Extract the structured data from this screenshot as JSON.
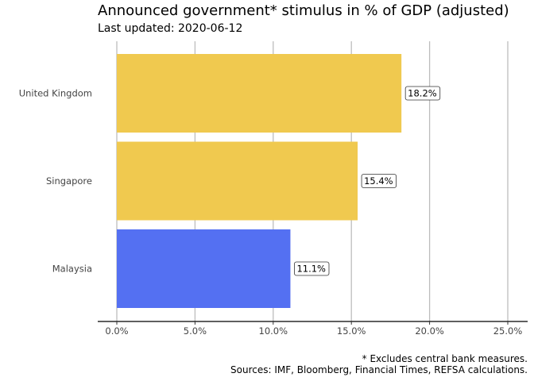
{
  "title": "Announced government* stimulus in % of GDP (adjusted)",
  "subtitle": "Last updated: 2020-06-12",
  "captions": [
    "* Excludes central bank measures.",
    "Sources: IMF, Bloomberg, Financial Times, REFSA calculations."
  ],
  "chart_data": {
    "type": "bar",
    "orientation": "horizontal",
    "categories": [
      "United Kingdom",
      "Singapore",
      "Malaysia"
    ],
    "values": [
      18.2,
      15.4,
      11.1
    ],
    "value_labels": [
      "18.2%",
      "15.4%",
      "11.1%"
    ],
    "colors": [
      "#F0C94F",
      "#F0C94F",
      "#5470F2"
    ],
    "xlim": [
      0,
      25
    ],
    "xticks": [
      0,
      5,
      10,
      15,
      20,
      25
    ],
    "xtick_labels": [
      "0.0%",
      "5.0%",
      "10.0%",
      "15.0%",
      "20.0%",
      "25.0%"
    ],
    "grid": "vertical major",
    "legend": "none"
  }
}
